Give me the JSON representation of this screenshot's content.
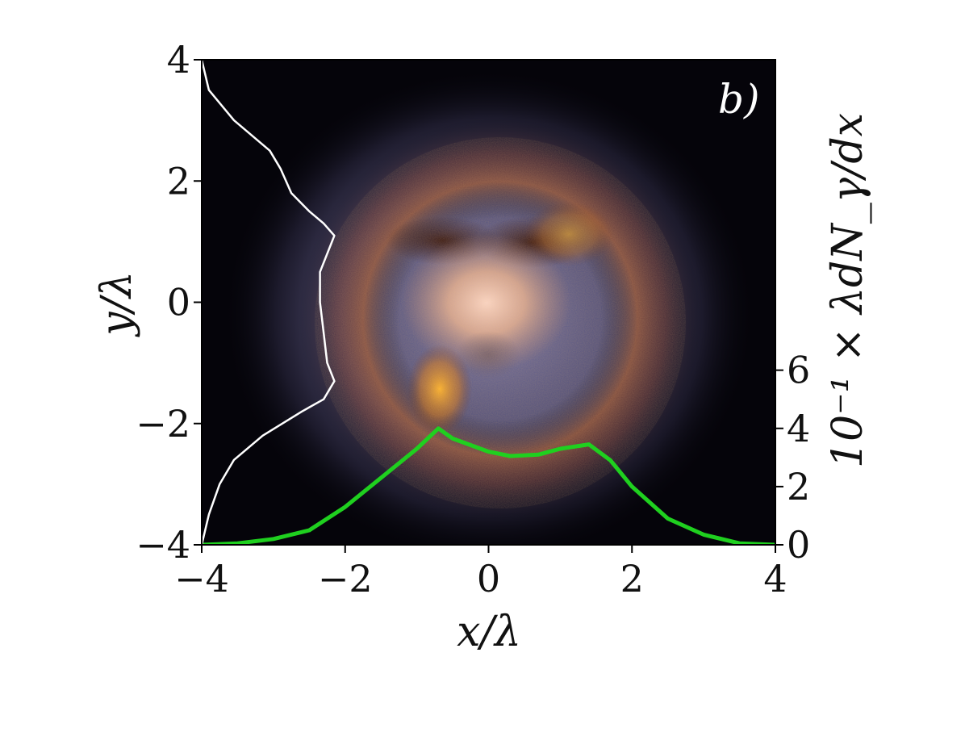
{
  "chart_data": {
    "type": "heatmap",
    "panel_label": "b)",
    "xlabel": "x/λ",
    "ylabel": "y/λ",
    "right_axis_label": "10⁻¹ × λdN_γ/dx",
    "xlim": [
      -4,
      4
    ],
    "ylim": [
      -4,
      4
    ],
    "x_ticks": [
      -4,
      -2,
      0,
      2,
      4
    ],
    "x_tick_labels": [
      "−4",
      "−2",
      "0",
      "2",
      "4"
    ],
    "y_ticks": [
      -4,
      -2,
      0,
      2,
      4
    ],
    "y_tick_labels": [
      "−4",
      "−2",
      "0",
      "2",
      "4"
    ],
    "right_ticks": [
      0,
      2,
      4,
      6
    ],
    "right_tick_labels": [
      "0",
      "2",
      "4",
      "6"
    ],
    "right_ylim": [
      0,
      6
    ],
    "series": [
      {
        "color": "#1fd01f",
        "orientation": "x-profile",
        "x": [
          -4.0,
          -3.5,
          -3.0,
          -2.5,
          -2.0,
          -1.5,
          -1.0,
          -0.7,
          -0.5,
          0.0,
          0.3,
          0.7,
          1.0,
          1.4,
          1.7,
          2.0,
          2.5,
          3.0,
          3.5,
          4.0
        ],
        "values": [
          0.0,
          0.05,
          0.2,
          0.5,
          1.3,
          2.3,
          3.3,
          4.0,
          3.65,
          3.2,
          3.05,
          3.1,
          3.3,
          3.45,
          2.9,
          2.0,
          0.9,
          0.35,
          0.05,
          0.0
        ]
      },
      {
        "color": "#ffffff",
        "orientation": "y-profile",
        "y": [
          4.0,
          3.5,
          3.0,
          2.5,
          2.2,
          1.8,
          1.5,
          1.3,
          1.1,
          0.5,
          0.0,
          -0.5,
          -1.0,
          -1.3,
          -1.6,
          -1.8,
          -2.2,
          -2.6,
          -3.0,
          -3.5,
          -4.0
        ],
        "x": [
          -4.0,
          -3.9,
          -3.55,
          -3.05,
          -2.9,
          -2.75,
          -2.5,
          -2.3,
          -2.15,
          -2.35,
          -2.35,
          -2.3,
          -2.25,
          -2.15,
          -2.3,
          -2.6,
          -3.15,
          -3.55,
          -3.75,
          -3.9,
          -4.0
        ]
      }
    ]
  }
}
